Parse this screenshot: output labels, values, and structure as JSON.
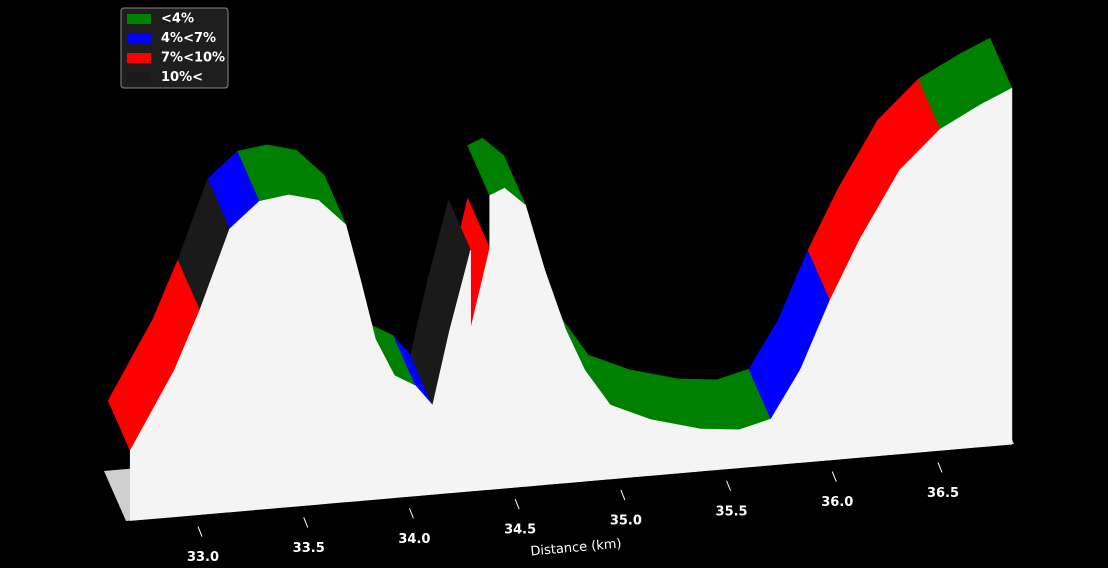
{
  "chart_data": {
    "type": "profile3d",
    "xlabel": "Distance (km)",
    "x": [
      32.67,
      32.88,
      33.0,
      33.14,
      33.28,
      33.42,
      33.56,
      33.69,
      33.76,
      33.83,
      33.92,
      34.02,
      34.1,
      34.18,
      34.28,
      34.37,
      34.44,
      34.54,
      34.63,
      34.73,
      34.82,
      34.94,
      35.13,
      35.37,
      35.55,
      35.7,
      35.84,
      35.98,
      36.12,
      36.31,
      36.5,
      36.69,
      36.84
    ],
    "series": [
      {
        "name": "<4%",
        "color": "#008000",
        "values": [
          null,
          null,
          null,
          null,
          308,
          312,
          304,
          277,
          220,
          160,
          122,
          110,
          null,
          null,
          null,
          294,
          300,
          281,
          215,
          153,
          111,
          74,
          56,
          42,
          38,
          46,
          null,
          null,
          null,
          null,
          321,
          342,
          356
        ]
      },
      {
        "name": "4%<7%",
        "color": "#0000ff",
        "values": [
          null,
          null,
          null,
          283,
          308,
          null,
          null,
          null,
          null,
          null,
          null,
          110,
          89,
          null,
          null,
          null,
          null,
          null,
          null,
          null,
          null,
          null,
          null,
          null,
          null,
          46,
          93,
          160,
          null,
          null,
          null,
          null,
          null
        ]
      },
      {
        "name": "7%<10%",
        "color": "#ff0000",
        "values": [
          70,
          147,
          205,
          null,
          null,
          null,
          null,
          null,
          null,
          null,
          null,
          null,
          null,
          null,
          162,
          241,
          null,
          null,
          null,
          null,
          null,
          null,
          null,
          null,
          null,
          null,
          null,
          160,
          218,
          284,
          321,
          null,
          null
        ]
      },
      {
        "name": "10%<",
        "color": "#1a1a1a",
        "values": [
          null,
          null,
          205,
          283,
          null,
          null,
          null,
          null,
          null,
          null,
          null,
          null,
          89,
          162,
          241,
          null,
          null,
          null,
          null,
          null,
          null,
          null,
          null,
          null,
          null,
          null,
          null,
          null,
          null,
          null,
          null,
          null,
          null
        ]
      }
    ],
    "xlim": [
      32.65,
      36.85
    ],
    "xticks": [
      {
        "value": 33,
        "label": "33.0"
      },
      {
        "value": 33.5,
        "label": "33.5"
      },
      {
        "value": 34,
        "label": "34.0"
      },
      {
        "value": 34.5,
        "label": "34.5"
      },
      {
        "value": 35,
        "label": "35.0"
      },
      {
        "value": 35.5,
        "label": "35.5"
      },
      {
        "value": 36,
        "label": "36.0"
      },
      {
        "value": 36.5,
        "label": "36.5"
      }
    ],
    "legend": "upper left"
  }
}
